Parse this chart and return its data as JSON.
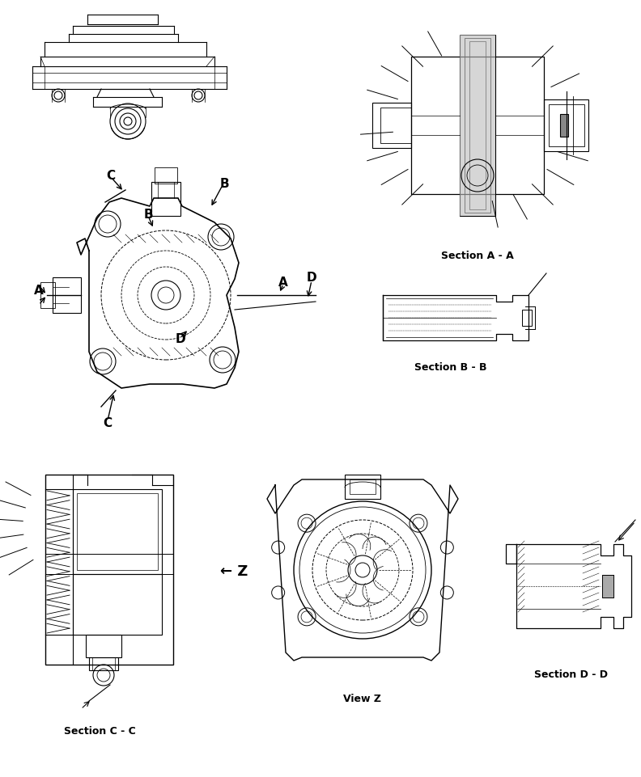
{
  "background_color": "#ffffff",
  "line_color": "#000000",
  "fig_width": 7.92,
  "fig_height": 9.61,
  "dpi": 100,
  "labels": {
    "section_aa": "Section A - A",
    "section_bb": "Section B - B",
    "section_cc": "Section C - C",
    "section_dd": "Section D - D",
    "view_z": "View Z"
  }
}
